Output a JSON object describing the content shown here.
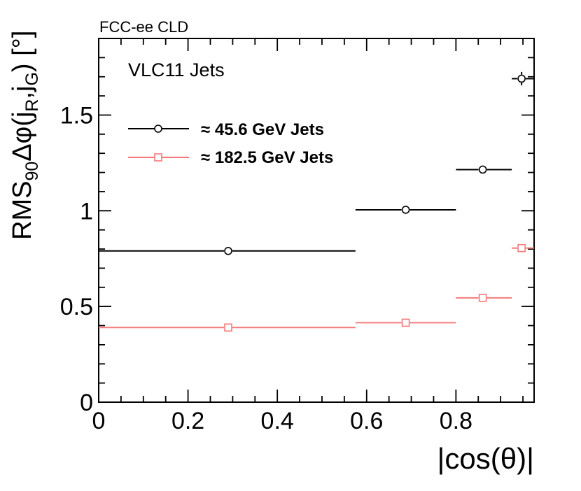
{
  "chart_data": {
    "type": "scatter",
    "experiment_label": "FCC-ee CLD",
    "plot_label": "VLC11 Jets",
    "xlabel": "|cos(θ)|",
    "ylabel": {
      "prefix": "RMS",
      "sub90": "90",
      "delta_phi": "Δφ(j",
      "subR": "R",
      "comma_j": ",j",
      "subG": "G",
      "unit": ") [°]"
    },
    "xlim": [
      0,
      0.975
    ],
    "ylim": [
      0,
      1.9
    ],
    "x_ticks": [
      {
        "value": 0,
        "label": "0"
      },
      {
        "value": 0.2,
        "label": "0.2"
      },
      {
        "value": 0.4,
        "label": "0.4"
      },
      {
        "value": 0.6,
        "label": "0.6"
      },
      {
        "value": 0.8,
        "label": "0.8"
      }
    ],
    "y_ticks": [
      {
        "value": 0,
        "label": "0"
      },
      {
        "value": 0.5,
        "label": "0.5"
      },
      {
        "value": 1,
        "label": "1"
      },
      {
        "value": 1.5,
        "label": "1.5"
      }
    ],
    "series": [
      {
        "name": "≈ 45.6 GeV Jets",
        "color": "#000000",
        "marker": "circle",
        "points": [
          {
            "x": 0.29,
            "x_low": 0.0,
            "x_high": 0.575,
            "y": 0.79,
            "y_err": 0.0
          },
          {
            "x": 0.6875,
            "x_low": 0.575,
            "x_high": 0.8,
            "y": 1.005,
            "y_err": 0.0
          },
          {
            "x": 0.86,
            "x_low": 0.8,
            "x_high": 0.925,
            "y": 1.215,
            "y_err": 0.0
          },
          {
            "x": 0.947,
            "x_low": 0.925,
            "x_high": 0.975,
            "y": 1.69,
            "y_err": 0.035
          }
        ]
      },
      {
        "name": "≈ 182.5 GeV Jets",
        "color": "#f47a7a",
        "marker": "square",
        "points": [
          {
            "x": 0.29,
            "x_low": 0.0,
            "x_high": 0.575,
            "y": 0.39,
            "y_err": 0.0
          },
          {
            "x": 0.6875,
            "x_low": 0.575,
            "x_high": 0.8,
            "y": 0.415,
            "y_err": 0.0
          },
          {
            "x": 0.86,
            "x_low": 0.8,
            "x_high": 0.925,
            "y": 0.545,
            "y_err": 0.0
          },
          {
            "x": 0.947,
            "x_low": 0.925,
            "x_high": 0.975,
            "y": 0.805,
            "y_err": 0.0
          }
        ]
      }
    ],
    "legend_position": "upper-left"
  }
}
